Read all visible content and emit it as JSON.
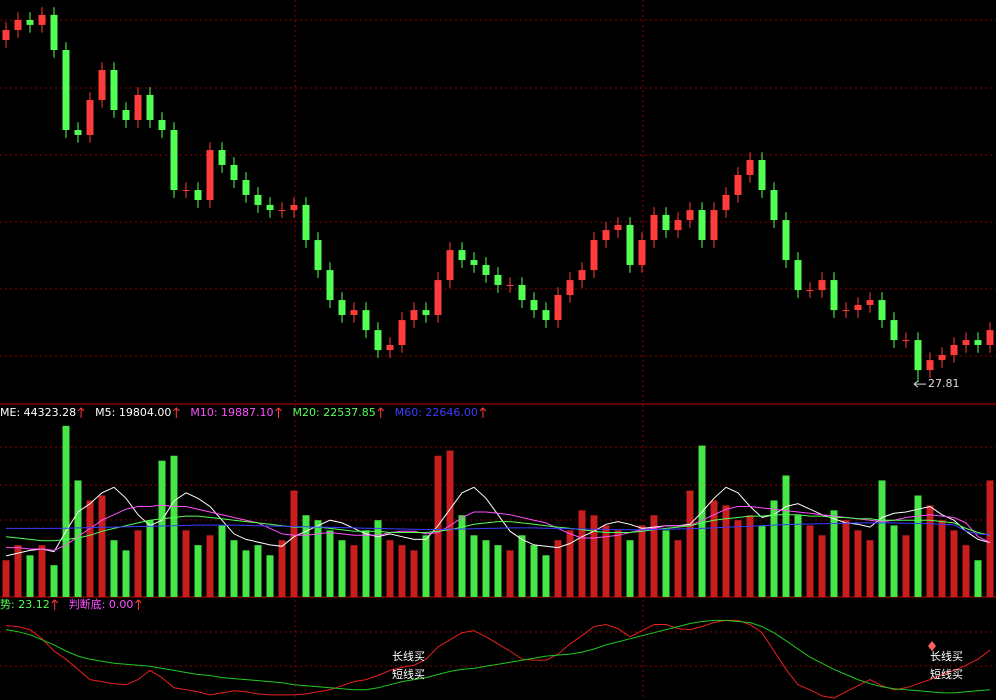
{
  "chart_data": [
    {
      "type": "candlestick",
      "up_color": "#ff3c3c",
      "down_color": "#54ff54",
      "ylim": [
        26.87,
        45
      ],
      "open": [
        43.2,
        43.65,
        44.1,
        43.88,
        44.33,
        42.75,
        39.15,
        38.93,
        40.5,
        41.85,
        40.05,
        39.6,
        40.73,
        39.6,
        39.15,
        36.45,
        36.45,
        36.0,
        38.25,
        37.58,
        36.9,
        36.23,
        35.78,
        35.55,
        35.55,
        35.78,
        34.2,
        32.85,
        31.5,
        30.83,
        31.05,
        30.15,
        29.25,
        29.48,
        30.6,
        31.05,
        30.83,
        32.4,
        33.75,
        33.3,
        33.08,
        32.63,
        32.18,
        32.18,
        31.5,
        31.05,
        30.6,
        31.73,
        32.4,
        32.85,
        34.2,
        34.65,
        34.88,
        33.08,
        34.2,
        35.33,
        34.65,
        35.1,
        35.55,
        34.2,
        35.55,
        36.23,
        37.13,
        37.8,
        36.45,
        35.1,
        33.3,
        31.95,
        31.95,
        32.4,
        31.05,
        31.05,
        31.28,
        31.5,
        30.6,
        29.7,
        29.7,
        28.35,
        28.8,
        29.03,
        29.48,
        29.7,
        29.48
      ],
      "high": [
        44.0,
        44.45,
        44.45,
        44.68,
        44.68,
        43.1,
        39.5,
        40.85,
        42.2,
        42.2,
        40.4,
        41.08,
        41.08,
        39.95,
        39.5,
        36.8,
        36.8,
        38.6,
        38.6,
        37.93,
        37.25,
        36.58,
        36.13,
        35.9,
        36.13,
        36.13,
        34.55,
        33.2,
        31.85,
        31.4,
        31.4,
        30.5,
        29.83,
        30.95,
        31.4,
        31.4,
        32.75,
        34.1,
        34.1,
        33.65,
        33.43,
        32.98,
        32.53,
        32.53,
        31.85,
        31.4,
        32.08,
        32.75,
        33.2,
        34.55,
        35.0,
        35.23,
        35.23,
        34.55,
        35.68,
        35.68,
        35.45,
        35.9,
        35.9,
        35.9,
        36.58,
        37.48,
        38.15,
        38.15,
        36.8,
        35.45,
        33.65,
        32.3,
        32.75,
        32.75,
        31.4,
        31.63,
        31.85,
        31.85,
        30.95,
        30.05,
        30.05,
        29.15,
        29.38,
        29.83,
        30.05,
        30.05,
        30.5
      ],
      "low": [
        42.85,
        43.3,
        43.53,
        43.53,
        42.4,
        38.8,
        38.58,
        38.58,
        40.15,
        39.7,
        39.25,
        39.25,
        39.25,
        38.8,
        36.1,
        36.1,
        35.65,
        35.65,
        37.23,
        36.55,
        35.88,
        35.43,
        35.2,
        35.2,
        35.2,
        33.85,
        32.5,
        31.15,
        30.48,
        30.48,
        29.8,
        28.9,
        28.9,
        29.13,
        30.25,
        30.48,
        30.48,
        32.05,
        32.95,
        32.73,
        32.28,
        31.83,
        31.83,
        31.15,
        30.7,
        30.25,
        30.25,
        31.38,
        32.05,
        32.5,
        33.85,
        34.3,
        32.73,
        32.73,
        33.85,
        34.3,
        34.3,
        34.75,
        33.85,
        33.85,
        35.2,
        35.88,
        36.78,
        36.1,
        34.75,
        32.95,
        31.6,
        31.6,
        31.6,
        30.7,
        30.7,
        30.7,
        30.93,
        30.25,
        29.35,
        29.35,
        27.81,
        28.0,
        28.45,
        28.68,
        29.13,
        29.13,
        29.13
      ],
      "close": [
        43.65,
        44.1,
        43.88,
        44.33,
        42.75,
        39.15,
        38.93,
        40.5,
        41.85,
        40.05,
        39.6,
        40.73,
        39.6,
        39.15,
        36.45,
        36.45,
        36.0,
        38.25,
        37.58,
        36.9,
        36.23,
        35.78,
        35.55,
        35.55,
        35.78,
        34.2,
        32.85,
        31.5,
        30.83,
        31.05,
        30.15,
        29.25,
        29.48,
        30.6,
        31.05,
        30.83,
        32.4,
        33.75,
        33.3,
        33.08,
        32.63,
        32.18,
        32.18,
        31.5,
        31.05,
        30.6,
        31.73,
        32.4,
        32.85,
        34.2,
        34.65,
        34.88,
        33.08,
        34.2,
        35.33,
        34.65,
        35.1,
        35.55,
        34.2,
        35.55,
        36.23,
        37.13,
        37.8,
        36.45,
        35.1,
        33.3,
        31.95,
        31.95,
        32.4,
        31.05,
        31.05,
        31.28,
        31.5,
        30.6,
        29.7,
        29.7,
        28.35,
        28.8,
        29.03,
        29.48,
        29.7,
        29.48,
        30.15
      ]
    },
    {
      "type": "bar",
      "ylim": [
        0,
        70000
      ],
      "header": [
        "ME: 44323.28",
        "M5: 19804.00",
        "M10: 19887.10",
        "M20: 22537.85",
        "M60: 22646.00"
      ],
      "header_colors": [
        "#ffffff",
        "#ffffff",
        "#ff50ff",
        "#54ff54",
        "#3c3cff"
      ],
      "values": [
        13400,
        18900,
        15200,
        18900,
        11600,
        62400,
        42500,
        35200,
        37000,
        20700,
        17000,
        24300,
        28000,
        49700,
        51500,
        24300,
        18900,
        22500,
        26100,
        20700,
        17000,
        18900,
        15200,
        20700,
        38800,
        29800,
        28000,
        24300,
        20700,
        18900,
        24300,
        28000,
        20700,
        18900,
        17000,
        22500,
        51500,
        53400,
        29800,
        22500,
        20700,
        18900,
        17000,
        22500,
        18900,
        15200,
        20700,
        24300,
        31600,
        29800,
        26100,
        24300,
        20700,
        26100,
        29800,
        24300,
        20700,
        38800,
        55200,
        35200,
        33400,
        28000,
        29800,
        26100,
        35200,
        44300,
        29800,
        26100,
        22500,
        31600,
        28000,
        24300,
        20700,
        42500,
        26100,
        22500,
        37000,
        33400,
        28000,
        24300,
        18900,
        13400,
        42500
      ],
      "series": [
        {
          "color": "#ffffff",
          "values": [
            15000,
            16000,
            17000,
            17500,
            16500,
            24000,
            31000,
            34000,
            38000,
            40000,
            36000,
            30000,
            26000,
            28000,
            35000,
            38000,
            36000,
            33000,
            28000,
            23000,
            21000,
            20000,
            19000,
            18500,
            22000,
            24000,
            26000,
            28000,
            27000,
            25000,
            23000,
            22000,
            23000,
            22000,
            21000,
            21000,
            26000,
            32000,
            38000,
            40000,
            36000,
            30000,
            24000,
            21000,
            19000,
            18500,
            18000,
            19500,
            22000,
            24000,
            26500,
            27500,
            26500,
            25000,
            25500,
            26000,
            26000,
            26500,
            31000,
            36000,
            40000,
            38000,
            33000,
            29000,
            30000,
            33000,
            34000,
            32000,
            30000,
            28500,
            27000,
            26500,
            25500,
            29000,
            30500,
            31000,
            32000,
            33000,
            30000,
            28000,
            24000,
            21000,
            19804
          ]
        },
        {
          "color": "#ff50ff",
          "values": [
            18000,
            18000,
            17500,
            17500,
            17000,
            19000,
            22000,
            25000,
            28000,
            30000,
            32000,
            33000,
            33000,
            33500,
            33000,
            33000,
            32000,
            31000,
            30000,
            29000,
            28000,
            27000,
            25000,
            23000,
            22500,
            22500,
            23000,
            23500,
            23000,
            22500,
            22500,
            22500,
            23500,
            24000,
            24000,
            23000,
            23500,
            26000,
            29000,
            31000,
            31000,
            30500,
            30000,
            29000,
            28000,
            27000,
            25000,
            23000,
            21500,
            21500,
            22000,
            22500,
            23500,
            24500,
            25000,
            26000,
            26000,
            26000,
            28000,
            30000,
            32000,
            33000,
            33000,
            32500,
            32000,
            31500,
            31000,
            30500,
            30000,
            29500,
            29000,
            28500,
            28000,
            27500,
            28000,
            29000,
            29500,
            30000,
            29500,
            29000,
            27000,
            22000,
            19887.1
          ]
        },
        {
          "color": "#54ff54",
          "values": [
            22000,
            21500,
            21000,
            20500,
            20500,
            21000,
            21500,
            22500,
            24000,
            25000,
            26000,
            27000,
            28000,
            28500,
            29000,
            29500,
            29500,
            29000,
            28500,
            28000,
            27500,
            27000,
            26500,
            26000,
            25500,
            25500,
            25500,
            25000,
            24500,
            24000,
            24000,
            24000,
            23500,
            23500,
            23500,
            23500,
            24000,
            24500,
            25500,
            26500,
            27000,
            27500,
            27500,
            27000,
            26500,
            26000,
            25500,
            25000,
            24500,
            24000,
            23500,
            23500,
            23500,
            24000,
            24500,
            25000,
            25500,
            26000,
            27000,
            28000,
            28500,
            29000,
            29500,
            29500,
            30000,
            30000,
            30000,
            29500,
            29500,
            29000,
            29000,
            28500,
            28500,
            28000,
            28000,
            28000,
            28000,
            28000,
            27500,
            27000,
            25000,
            23500,
            22537.85
          ]
        },
        {
          "color": "#3c3cff",
          "values": [
            25000,
            25000,
            25000,
            25000,
            25000,
            25100,
            25200,
            25300,
            25400,
            25500,
            25600,
            25700,
            25800,
            25900,
            26000,
            26100,
            26200,
            26200,
            26200,
            26200,
            26100,
            26000,
            25900,
            25800,
            25700,
            25600,
            25500,
            25400,
            25300,
            25200,
            25100,
            25000,
            24900,
            24800,
            24700,
            24600,
            24600,
            24700,
            24800,
            24900,
            25000,
            25100,
            25200,
            25200,
            25200,
            25100,
            25000,
            24900,
            24800,
            24700,
            24600,
            24500,
            24500,
            24500,
            24600,
            24700,
            24800,
            24900,
            25000,
            25200,
            25400,
            25600,
            25800,
            26000,
            26200,
            26400,
            26500,
            26600,
            26700,
            26800,
            26900,
            27000,
            27000,
            27000,
            27000,
            26900,
            26800,
            26700,
            26500,
            26300,
            24000,
            23000,
            22646
          ]
        }
      ]
    },
    {
      "type": "line",
      "ylim": [
        0,
        100
      ],
      "header": [
        "势: 23.12",
        "判断底: 0.00"
      ],
      "header_colors": [
        "#54ff54",
        "#ff50ff"
      ],
      "annotations": [
        "长线买",
        "短线买",
        "长线买",
        "短线买"
      ],
      "series": [
        {
          "color": "#e82020",
          "values": [
            73,
            72,
            69,
            60,
            48,
            40,
            30,
            20,
            18,
            16,
            15,
            20,
            29,
            22,
            12,
            10,
            8,
            5,
            7,
            9,
            8,
            6,
            5,
            5,
            5,
            6,
            8,
            10,
            14,
            18,
            20,
            24,
            29,
            32,
            34,
            40,
            52,
            59,
            66,
            68,
            62,
            55,
            48,
            40,
            39,
            39,
            45,
            55,
            63,
            72,
            74,
            70,
            62,
            68,
            74,
            74,
            70,
            69,
            72,
            76,
            78,
            78,
            74,
            66,
            48,
            30,
            15,
            10,
            4,
            2,
            8,
            14,
            20,
            14,
            10,
            12,
            16,
            20,
            25,
            29,
            34,
            40,
            49
          ]
        },
        {
          "color": "#20c820",
          "values": [
            69,
            67,
            64,
            59,
            54,
            48,
            43,
            40,
            38,
            36,
            35,
            34,
            33,
            31,
            29,
            27,
            25,
            24,
            22,
            21,
            20,
            19,
            18,
            17,
            15,
            14,
            13,
            12,
            11,
            10,
            10,
            12,
            15,
            18,
            20,
            22,
            25,
            28,
            30,
            31,
            33,
            35,
            37,
            39,
            41,
            43,
            44,
            45,
            47,
            50,
            54,
            57,
            60,
            63,
            66,
            69,
            72,
            75,
            77,
            78,
            78,
            77,
            76,
            72,
            66,
            58,
            50,
            42,
            36,
            30,
            25,
            20,
            16,
            13,
            11,
            10,
            9,
            8,
            7,
            7,
            8,
            9,
            10
          ]
        }
      ]
    }
  ]
}
